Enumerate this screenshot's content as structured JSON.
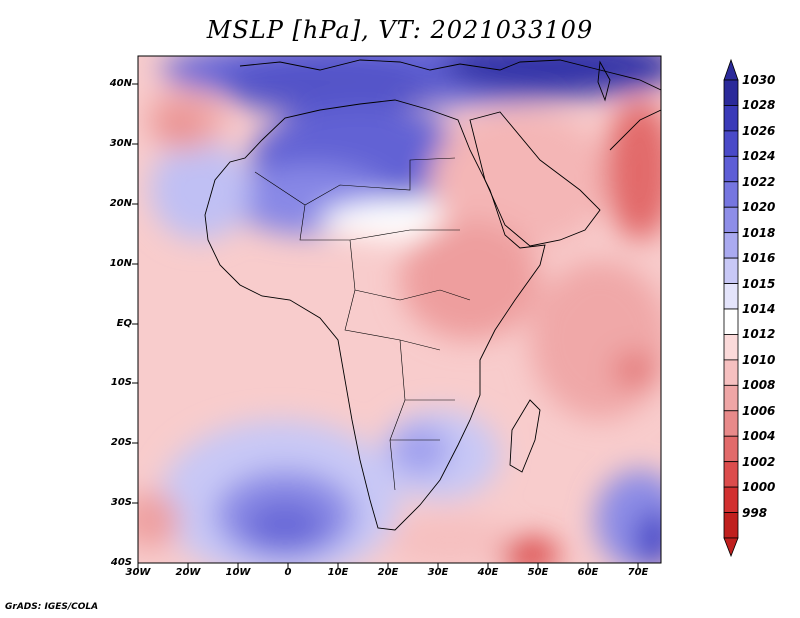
{
  "map": {
    "title": "MSLP [hPa], VT: 2021033109",
    "lat_labels": [
      "40N",
      "30N",
      "20N",
      "10N",
      "EQ",
      "10S",
      "20S",
      "30S",
      "40S"
    ],
    "lon_labels": [
      "30W",
      "20W",
      "10W",
      "0",
      "10E",
      "20E",
      "30E",
      "40E",
      "50E",
      "60E",
      "70E"
    ],
    "footer": "GrADS: IGES/COLA"
  },
  "colorbar": {
    "levels": [
      "1030",
      "1028",
      "1026",
      "1024",
      "1022",
      "1020",
      "1018",
      "1016",
      "1015",
      "1014",
      "1012",
      "1010",
      "1008",
      "1006",
      "1004",
      "1002",
      "1000",
      "998"
    ],
    "colors": [
      "#2b2a9a",
      "#3a3ab8",
      "#4a4ac8",
      "#5e5ed6",
      "#7676e0",
      "#8e8ee8",
      "#aaaaf0",
      "#c8c8f6",
      "#e4e4fb",
      "#ffffff",
      "#fbdada",
      "#f6c0c0",
      "#efa6a6",
      "#e88a8a",
      "#e26a6a",
      "#dc4c4c",
      "#d23030",
      "#c0201e"
    ]
  }
}
